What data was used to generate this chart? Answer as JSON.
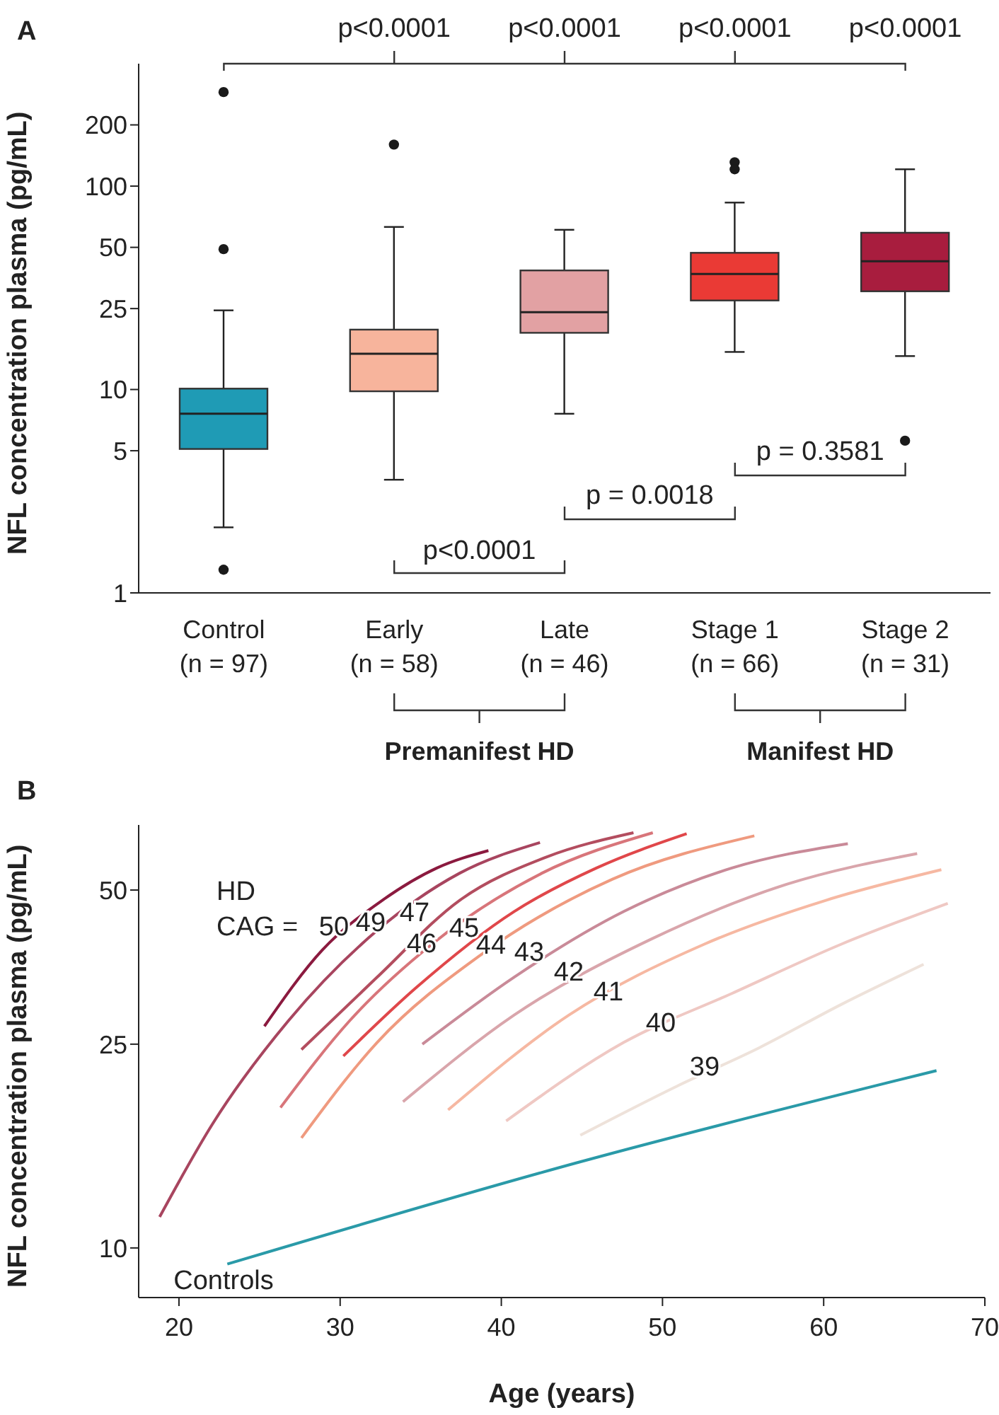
{
  "chart_data": [
    {
      "type": "box",
      "title": "A",
      "ylabel": "NFL concentration plasma (pg/mL)",
      "categories": [
        "Control\n(n = 97)",
        "Early\n(n = 58)",
        "Late\n(n = 46)",
        "Stage 1\n(n = 66)",
        "Stage 2\n(n = 31)"
      ],
      "colors": [
        "#1f9bb5",
        "#f7b49c",
        "#e2a1a3",
        "#ea3a35",
        "#a81d3e"
      ],
      "boxes": [
        {
          "low": 2.1,
          "q1": 5.1,
          "median": 7.6,
          "q3": 10.1,
          "high": 24.5,
          "outliers": [
            290,
            49,
            1.3
          ]
        },
        {
          "low": 3.6,
          "q1": 9.8,
          "median": 15,
          "q3": 19.7,
          "high": 63,
          "outliers": [
            160
          ]
        },
        {
          "low": 7.6,
          "q1": 19,
          "median": 24,
          "q3": 38.5,
          "high": 61
        },
        {
          "low": 15.3,
          "q1": 27.4,
          "median": 37,
          "q3": 47,
          "high": 83,
          "outliers": [
            131,
            121
          ]
        },
        {
          "low": 14.6,
          "q1": 30.4,
          "median": 42.7,
          "q3": 59,
          "high": 121,
          "outliers": [
            5.6
          ]
        }
      ],
      "ylim": [
        1,
        400
      ],
      "yticks": [
        1,
        5,
        10,
        25,
        50,
        100,
        200
      ],
      "log": true,
      "annotations": [
        "p<0.0001",
        "p<0.0001",
        "p<0.0001",
        "p<0.0001",
        "p<0.0001",
        "p = 0.0018",
        "p = 0.3581",
        "Premanifest HD",
        "Manifest HD"
      ]
    },
    {
      "type": "line",
      "title": "B",
      "xlabel": "Age (years)",
      "ylabel": "NFL concentration plasma (pg/mL)",
      "xlim": [
        17.5,
        70
      ],
      "xticks": [
        20,
        30,
        40,
        50,
        60,
        70
      ],
      "ylim": [
        8,
        67
      ],
      "yticks": [
        10,
        25,
        50
      ],
      "log": "y",
      "annotations": [
        "HD",
        "CAG ="
      ],
      "series": [
        {
          "name": "50",
          "color": "#8b1a3f",
          "x": [
            25.3,
            28.9,
            32.6,
            36.0,
            39.2
          ],
          "values": [
            27.1,
            38.2,
            47.7,
            55.2,
            59.7
          ]
        },
        {
          "name": "49",
          "color": "#a8455f",
          "x": [
            18.8,
            22.1,
            26.8,
            32.3,
            37.4,
            42.4
          ],
          "values": [
            11.5,
            17.5,
            27.8,
            41.7,
            53.9,
            61.9
          ]
        },
        {
          "name": "47",
          "color": "#b34d5f",
          "x": [
            27.6,
            32.3,
            37.4,
            42.8,
            48.2
          ],
          "values": [
            24.4,
            33.8,
            47.7,
            58.0,
            64.7
          ]
        },
        {
          "name": "46",
          "color": "#d8757a",
          "x": [
            26.3,
            30.6,
            35.7,
            42.5,
            49.4
          ],
          "values": [
            18.8,
            27.8,
            39.2,
            53.9,
            64.7
          ]
        },
        {
          "name": "45",
          "color": "#e0474a",
          "x": [
            30.2,
            34.7,
            40.8,
            45.9,
            51.5
          ],
          "values": [
            23.7,
            32.2,
            45.4,
            55.2,
            64.4
          ]
        },
        {
          "name": "44",
          "color": "#ef9a7f",
          "x": [
            27.6,
            32.3,
            38.7,
            46.9,
            55.7
          ],
          "values": [
            16.4,
            25.2,
            37.3,
            52.5,
            63.8
          ]
        },
        {
          "name": "43",
          "color": "#c98a98",
          "x": [
            35.1,
            40.8,
            47.6,
            54.3,
            61.5
          ],
          "values": [
            25.0,
            33.8,
            45.4,
            55.2,
            61.6
          ]
        },
        {
          "name": "42",
          "color": "#d9a5ab",
          "x": [
            33.9,
            40.8,
            49.3,
            57.7,
            65.8
          ],
          "values": [
            19.3,
            28.5,
            40.1,
            51.3,
            58.9
          ]
        },
        {
          "name": "41",
          "color": "#f6b8a2",
          "x": [
            36.7,
            44.2,
            52.6,
            60.1,
            67.3
          ],
          "values": [
            18.6,
            28.5,
            39.2,
            47.7,
            54.8
          ]
        },
        {
          "name": "40",
          "color": "#efc8c3",
          "x": [
            40.3,
            47.6,
            54.3,
            61.1,
            67.7
          ],
          "values": [
            17.7,
            25.2,
            31.4,
            39.2,
            47.1
          ]
        },
        {
          "name": "39",
          "color": "#eee2da",
          "x": [
            44.9,
            50.9,
            56.0,
            61.1,
            66.2
          ],
          "values": [
            16.6,
            20.7,
            24.6,
            29.9,
            35.8
          ]
        },
        {
          "name": "Controls",
          "color": "#2a9aa8",
          "x": [
            23.0,
            44.8,
            67.0
          ],
          "values": [
            9.3,
            14.7,
            22.2
          ]
        }
      ]
    }
  ]
}
